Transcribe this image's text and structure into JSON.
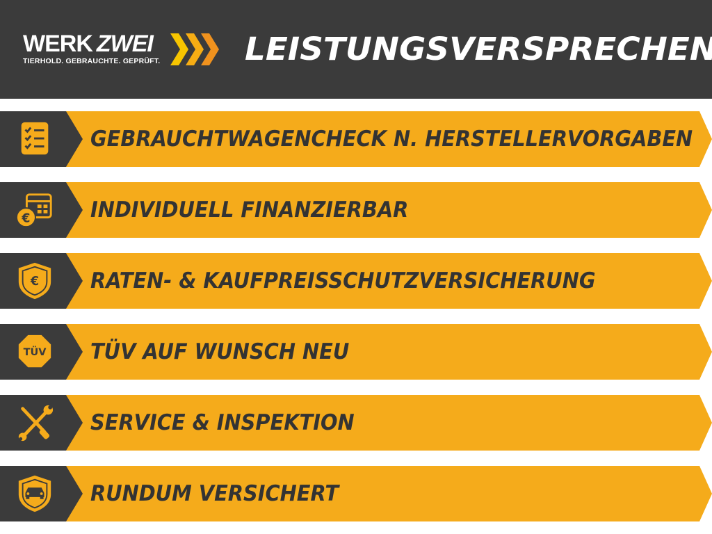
{
  "header": {
    "logo": {
      "word1": "WERK",
      "word2": "ZWEI",
      "tagline": "TIERHOLD. GEBRAUCHTE. GEPRÜFT."
    },
    "title": "LEISTUNGSVERSPRECHEN"
  },
  "colors": {
    "dark": "#3b3b3b",
    "accent": "#f5ab1b",
    "chevron_light": "#f7c500",
    "chevron_dark": "#f0921e"
  },
  "items": [
    {
      "label": "GEBRAUCHTWAGENCHECK N. HERSTELLERVORGABEN",
      "icon": "checklist-icon"
    },
    {
      "label": "INDIVIDUELL FINANZIERBAR",
      "icon": "calendar-euro-icon"
    },
    {
      "label": "RATEN- & KAUFPREISSCHUTZVERSICHERUNG",
      "icon": "shield-euro-icon"
    },
    {
      "label": "TÜV AUF WUNSCH NEU",
      "icon": "tuv-badge-icon",
      "icon_text": "TÜV"
    },
    {
      "label": "SERVICE & INSPEKTION",
      "icon": "wrench-screwdriver-icon"
    },
    {
      "label": "RUNDUM VERSICHERT",
      "icon": "shield-car-icon"
    }
  ]
}
